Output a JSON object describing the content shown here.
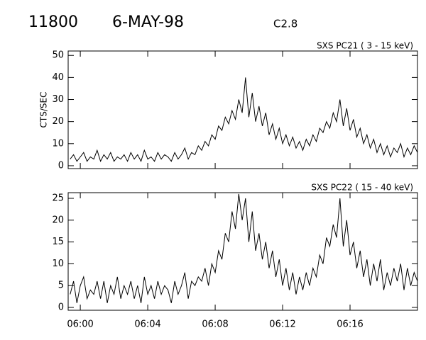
{
  "header": {
    "number": "11800",
    "date": "6-MAY-98",
    "class": "C2.8"
  },
  "chart_data": [
    {
      "type": "line",
      "title": "SXS PC21  (  3 - 15 keV)",
      "ylabel": "CTS/SEC",
      "color": "#000000",
      "x": [
        -0.6,
        -0.4,
        -0.2,
        0,
        0.2,
        0.4,
        0.6,
        0.8,
        1.0,
        1.2,
        1.4,
        1.6,
        1.8,
        2.0,
        2.2,
        2.4,
        2.6,
        2.8,
        3.0,
        3.2,
        3.4,
        3.6,
        3.8,
        4.0,
        4.2,
        4.4,
        4.6,
        4.8,
        5.0,
        5.2,
        5.4,
        5.6,
        5.8,
        6.0,
        6.2,
        6.4,
        6.6,
        6.8,
        7.0,
        7.2,
        7.4,
        7.6,
        7.8,
        8.0,
        8.2,
        8.4,
        8.6,
        8.8,
        9.0,
        9.2,
        9.4,
        9.6,
        9.8,
        10.0,
        10.2,
        10.4,
        10.6,
        10.8,
        11.0,
        11.2,
        11.4,
        11.6,
        11.8,
        12.0,
        12.2,
        12.4,
        12.6,
        12.8,
        13.0,
        13.2,
        13.4,
        13.6,
        13.8,
        14.0,
        14.2,
        14.4,
        14.6,
        14.8,
        15.0,
        15.2,
        15.4,
        15.6,
        15.8,
        16.0,
        16.2,
        16.4,
        16.6,
        16.8,
        17.0,
        17.2,
        17.4,
        17.6,
        17.8,
        18.0,
        18.2,
        18.4,
        18.6,
        18.8,
        19.0,
        19.2,
        19.4,
        19.6,
        19.8,
        20.0
      ],
      "values": [
        3,
        5,
        2,
        4,
        6,
        2,
        4,
        3,
        7,
        2,
        5,
        3,
        6,
        2,
        4,
        3,
        5,
        2,
        6,
        3,
        5,
        2,
        7,
        3,
        4,
        2,
        6,
        3,
        5,
        4,
        2,
        6,
        3,
        5,
        8,
        3,
        6,
        5,
        9,
        7,
        11,
        9,
        14,
        12,
        18,
        16,
        22,
        19,
        25,
        21,
        30,
        24,
        40,
        22,
        33,
        20,
        27,
        18,
        24,
        14,
        19,
        12,
        17,
        10,
        14,
        9,
        13,
        8,
        11,
        7,
        12,
        9,
        14,
        11,
        17,
        15,
        20,
        17,
        24,
        20,
        30,
        18,
        26,
        16,
        21,
        13,
        17,
        10,
        14,
        8,
        12,
        6,
        10,
        5,
        9,
        4,
        8,
        6,
        10,
        4,
        8,
        5,
        9,
        6
      ],
      "xlim": [
        -0.72,
        20
      ],
      "xticks": [
        0,
        4,
        8,
        12,
        16
      ],
      "ylim": [
        -1.3,
        52
      ],
      "yticks": [
        0,
        10,
        20,
        30,
        40,
        50
      ]
    },
    {
      "type": "line",
      "title": "SXS PC22  ( 15 - 40 keV)",
      "color": "#000000",
      "x": [
        -0.6,
        -0.4,
        -0.2,
        0,
        0.2,
        0.4,
        0.6,
        0.8,
        1.0,
        1.2,
        1.4,
        1.6,
        1.8,
        2.0,
        2.2,
        2.4,
        2.6,
        2.8,
        3.0,
        3.2,
        3.4,
        3.6,
        3.8,
        4.0,
        4.2,
        4.4,
        4.6,
        4.8,
        5.0,
        5.2,
        5.4,
        5.6,
        5.8,
        6.0,
        6.2,
        6.4,
        6.6,
        6.8,
        7.0,
        7.2,
        7.4,
        7.6,
        7.8,
        8.0,
        8.2,
        8.4,
        8.6,
        8.8,
        9.0,
        9.2,
        9.4,
        9.6,
        9.8,
        10.0,
        10.2,
        10.4,
        10.6,
        10.8,
        11.0,
        11.2,
        11.4,
        11.6,
        11.8,
        12.0,
        12.2,
        12.4,
        12.6,
        12.8,
        13.0,
        13.2,
        13.4,
        13.6,
        13.8,
        14.0,
        14.2,
        14.4,
        14.6,
        14.8,
        15.0,
        15.2,
        15.4,
        15.6,
        15.8,
        16.0,
        16.2,
        16.4,
        16.6,
        16.8,
        17.0,
        17.2,
        17.4,
        17.6,
        17.8,
        18.0,
        18.2,
        18.4,
        18.6,
        18.8,
        19.0,
        19.2,
        19.4,
        19.6,
        19.8,
        20.0
      ],
      "values": [
        3,
        6,
        1,
        5,
        7,
        2,
        4,
        3,
        6,
        2,
        6,
        1,
        5,
        3,
        7,
        2,
        5,
        3,
        6,
        2,
        5,
        1,
        7,
        3,
        5,
        2,
        6,
        3,
        5,
        4,
        1,
        6,
        3,
        5,
        8,
        2,
        6,
        5,
        7,
        6,
        9,
        5,
        10,
        8,
        13,
        11,
        17,
        15,
        22,
        18,
        26,
        20,
        25,
        15,
        22,
        13,
        17,
        11,
        15,
        9,
        13,
        7,
        11,
        5,
        9,
        4,
        8,
        3,
        7,
        4,
        8,
        5,
        9,
        7,
        12,
        10,
        16,
        14,
        19,
        16,
        25,
        14,
        20,
        12,
        15,
        9,
        13,
        7,
        11,
        5,
        10,
        6,
        11,
        4,
        8,
        5,
        9,
        6,
        10,
        4,
        9,
        5,
        8,
        6
      ],
      "xlim": [
        -0.72,
        20
      ],
      "xticks": [
        {
          "value": 0,
          "label": "06:00"
        },
        {
          "value": 4,
          "label": "06:04"
        },
        {
          "value": 8,
          "label": "06:08"
        },
        {
          "value": 12,
          "label": "06:12"
        },
        {
          "value": 16,
          "label": "06:16"
        }
      ],
      "ylim": [
        -0.65,
        26.3
      ],
      "yticks": [
        0,
        5,
        10,
        15,
        20,
        25
      ]
    }
  ]
}
